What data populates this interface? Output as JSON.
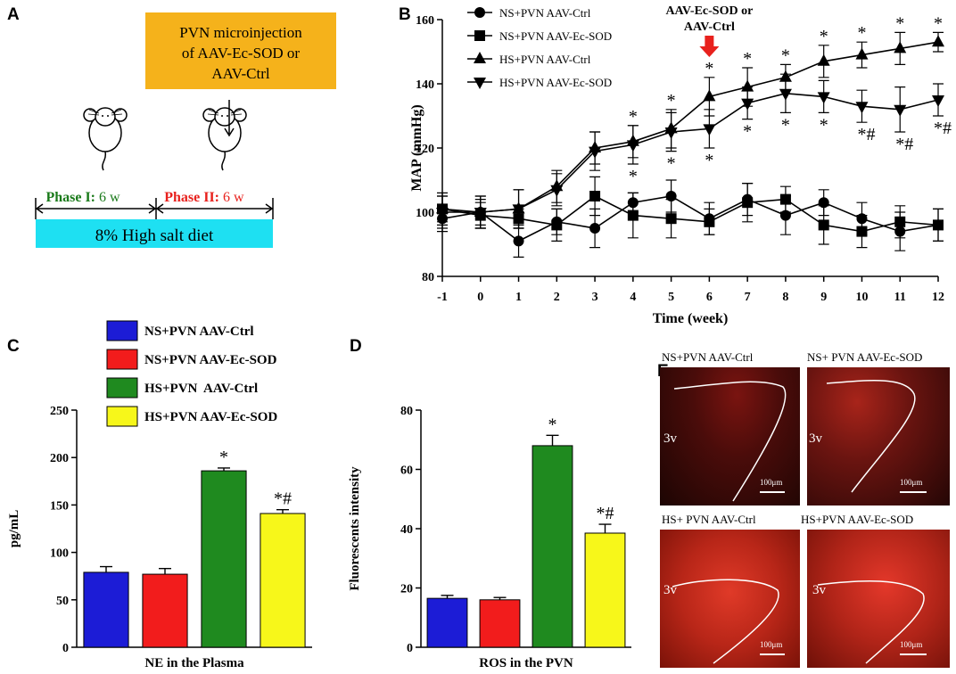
{
  "panels": {
    "a": "A",
    "b": "B",
    "c": "C",
    "d": "D",
    "e": "E"
  },
  "panel_a": {
    "box_lines": [
      "PVN microinjection",
      "of AAV-Ec-SOD or",
      "AAV-Ctrl"
    ],
    "phase1_name": "Phase I:",
    "phase1_dur": "6 w",
    "phase2_name": "Phase II:",
    "phase2_dur": "6 w",
    "diet": "8% High salt diet",
    "colors": {
      "box": "#f5b21b",
      "diet": "#1ee0f2",
      "phase1": "#1a7a1a",
      "phase2": "#e8211d"
    }
  },
  "chart_data": [
    {
      "type": "line",
      "ylabel": "MAP (mmHg)",
      "xlabel": "Time (week)",
      "x": [
        -1,
        0,
        1,
        2,
        3,
        4,
        5,
        6,
        7,
        8,
        9,
        10,
        11,
        12
      ],
      "xticks": [
        "-1",
        "0",
        "1",
        "2",
        "3",
        "4",
        "5",
        "6",
        "7",
        "8",
        "9",
        "10",
        "11",
        "12"
      ],
      "ylim": [
        80,
        160
      ],
      "yticks": [
        "80",
        "100",
        "120",
        "140",
        "160"
      ],
      "yticks_values": [
        80,
        100,
        120,
        140,
        160
      ],
      "arrow_label_lines": [
        "AAV-Ec-SOD or",
        "AAV-Ctrl"
      ],
      "arrow_week": 6,
      "series": [
        {
          "name": "NS+PVN AAV-Ctrl",
          "marker": "circle",
          "values": [
            98,
            100,
            91,
            97,
            95,
            103,
            105,
            98,
            104,
            99,
            103,
            98,
            94,
            96
          ],
          "errors": [
            4,
            5,
            5,
            4,
            6,
            3,
            5,
            5,
            5,
            6,
            4,
            5,
            6,
            5
          ]
        },
        {
          "name": "NS+PVN AAV-Ec-SOD",
          "marker": "square",
          "values": [
            101,
            99,
            98,
            96,
            105,
            99,
            98,
            97,
            103,
            104,
            96,
            94,
            97,
            96
          ],
          "errors": [
            4,
            4,
            3,
            5,
            6,
            7,
            6,
            4,
            6,
            4,
            6,
            5,
            5,
            5
          ]
        },
        {
          "name": "HS+PVN AAV-Ctrl",
          "marker": "triangle-up",
          "values": [
            101,
            100,
            101,
            108,
            120,
            122,
            126,
            136,
            139,
            142,
            147,
            149,
            151,
            153
          ],
          "errors": [
            5,
            4,
            6,
            5,
            5,
            5,
            6,
            6,
            6,
            4,
            5,
            4,
            5,
            3
          ]
        },
        {
          "name": "HS+PVN AAV-Ec-SOD",
          "marker": "triangle-down",
          "values": [
            100,
            100,
            101,
            107,
            119,
            121,
            125,
            126,
            134,
            137,
            136,
            133,
            132,
            135
          ],
          "errors": [
            5,
            5,
            6,
            5,
            6,
            6,
            6,
            6,
            5,
            6,
            5,
            5,
            7,
            5
          ]
        }
      ],
      "annotations": {
        "star": "*",
        "starhash": "*#"
      }
    },
    {
      "type": "bar",
      "title": "NE in the Plasma",
      "ylabel": "pg/mL",
      "ylim": [
        0,
        250
      ],
      "yticks": [
        "0",
        "50",
        "100",
        "150",
        "200",
        "250"
      ],
      "yticks_values": [
        0,
        50,
        100,
        150,
        200,
        250
      ],
      "categories": [
        "NS+PVN AAV-Ctrl",
        "NS+PVN AAV-Ec-SOD",
        "HS+PVN  AAV-Ctrl",
        "HS+PVN AAV-Ec-SOD"
      ],
      "values": [
        79,
        77,
        186,
        141
      ],
      "errors": [
        6,
        6,
        3,
        4
      ],
      "labels": [
        "",
        "",
        "*",
        "*#"
      ],
      "colors": [
        "#1c1cd6",
        "#f21c1c",
        "#1f8a1f",
        "#f7f71a"
      ]
    },
    {
      "type": "bar",
      "title": "ROS in the PVN",
      "ylabel": "Fluorescents intensity",
      "ylim": [
        0,
        80
      ],
      "yticks": [
        "0",
        "20",
        "40",
        "60",
        "80"
      ],
      "yticks_values": [
        0,
        20,
        40,
        60,
        80
      ],
      "categories": [
        "NS+PVN AAV-Ctrl",
        "NS+PVN AAV-Ec-SOD",
        "HS+PVN AAV-Ctrl",
        "HS+PVN AAV-Ec-SOD"
      ],
      "values": [
        16.5,
        16,
        68,
        38.5
      ],
      "errors": [
        1,
        0.8,
        3.5,
        3
      ],
      "labels": [
        "",
        "",
        "*",
        "*#"
      ],
      "colors": [
        "#1c1cd6",
        "#f21c1c",
        "#1f8a1f",
        "#f7f71a"
      ]
    }
  ],
  "panel_e": {
    "images": [
      {
        "title": "NS+PVN AAV-Ctrl",
        "region": "3v",
        "scale": "100μm"
      },
      {
        "title": "NS+ PVN AAV-Ec-SOD",
        "region": "3v",
        "scale": "100μm"
      },
      {
        "title": "HS+ PVN AAV-Ctrl",
        "region": "3v",
        "scale": "100μm"
      },
      {
        "title": "HS+PVN AAV-Ec-SOD",
        "region": "3v",
        "scale": "100μm"
      }
    ]
  }
}
